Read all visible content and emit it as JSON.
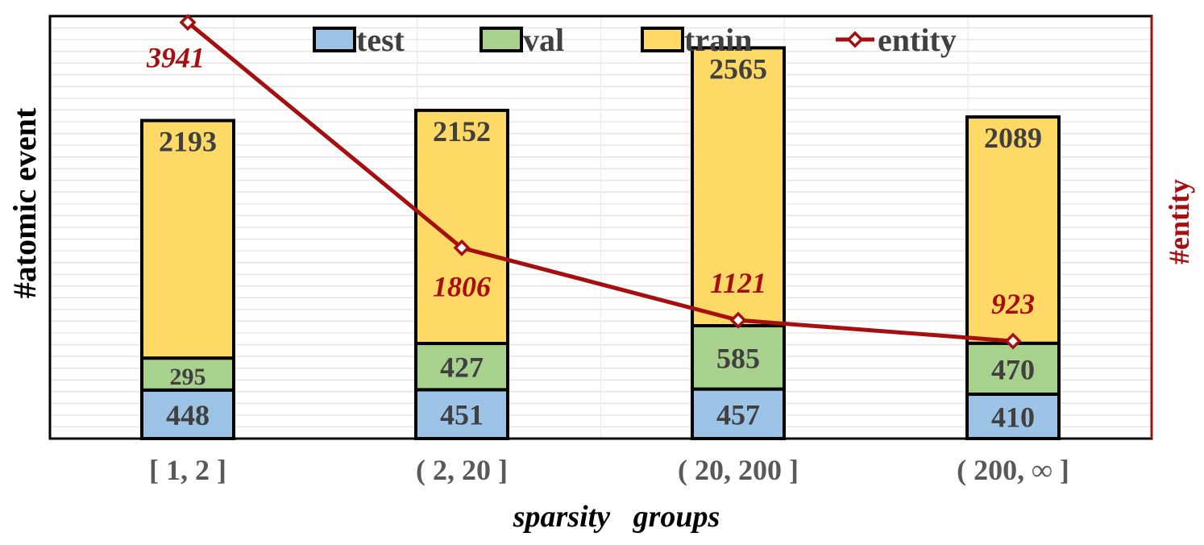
{
  "chart_data": {
    "type": "bar",
    "stacked": true,
    "categories": [
      "[ 1, 2 ]",
      "( 2, 20 ]",
      "( 20, 200 ]",
      "( 200, ∞ ]"
    ],
    "series": [
      {
        "name": "test",
        "values": [
          448,
          451,
          457,
          410
        ],
        "color": "#9dc3e6"
      },
      {
        "name": "val",
        "values": [
          295,
          427,
          585,
          470
        ],
        "color": "#a9d18e"
      },
      {
        "name": "train",
        "values": [
          2193,
          2152,
          2565,
          2089
        ],
        "color": "#ffd966"
      }
    ],
    "line_series": {
      "name": "entity",
      "values": [
        3941,
        1806,
        1121,
        923
      ],
      "color": "#a50f0f",
      "axis": "right"
    },
    "xlabel": "sparsity   groups",
    "ylabel": "#atomic event",
    "y2label": "#entity",
    "ylim": [
      0,
      3900
    ],
    "y2lim": [
      0,
      4000
    ],
    "legend_position": "top",
    "grid": true,
    "legend": [
      "test",
      "val",
      "train",
      "entity"
    ],
    "bar_border_color": "#000000",
    "bar_label_color": "#404040"
  }
}
